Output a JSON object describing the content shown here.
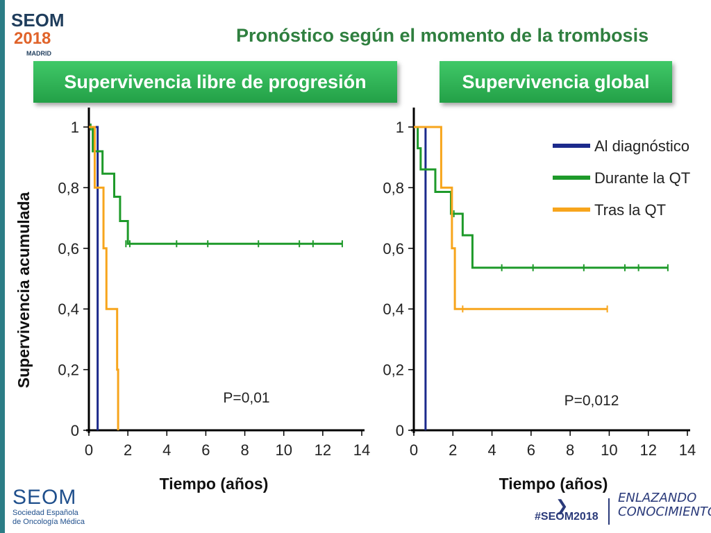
{
  "header": {
    "logo_line1": "SEOM",
    "logo_line2": "2018",
    "logo_city": "MADRID",
    "title": "Pronóstico según el momento de la trombosis"
  },
  "tabs": {
    "left": "Supervivencia libre de progresión",
    "right": "Supervivencia global"
  },
  "footer": {
    "brand": "SEOM",
    "brand_sub1": "Sociedad Española",
    "brand_sub2": "de Oncología Médica",
    "hashtag": "#SEOM2018",
    "motto_line1": "ENLAZANDO",
    "motto_line2": "CONOCIMIENTO"
  },
  "colors": {
    "al_diagnostico": "#1c2a8c",
    "durante_qt": "#1e9a2a",
    "tras_qt": "#f7a51c",
    "axis": "#000000"
  },
  "chart_data": [
    {
      "type": "line",
      "subtype": "kaplan-meier",
      "title": "Supervivencia libre de progresión",
      "xlabel": "Tiempo (años)",
      "ylabel": "Supervivencia acumulada",
      "xlim": [
        0,
        14
      ],
      "ylim": [
        0,
        1
      ],
      "xticks": [
        "0",
        "2",
        "4",
        "6",
        "8",
        "10",
        "12",
        "14"
      ],
      "yticks": [
        "0",
        "0,2",
        "0,4",
        "0,6",
        "0,8",
        "1"
      ],
      "annotation": "P=0,01",
      "series": [
        {
          "name": "Al diagnóstico",
          "color": "#1c2a8c",
          "steps": [
            [
              0,
              1.0
            ],
            [
              0.45,
              1.0
            ],
            [
              0.45,
              0.0
            ]
          ],
          "censored": []
        },
        {
          "name": "Durante la QT",
          "color": "#1e9a2a",
          "steps": [
            [
              0,
              1.0
            ],
            [
              0.2,
              1.0
            ],
            [
              0.2,
              0.92
            ],
            [
              0.7,
              0.92
            ],
            [
              0.7,
              0.846
            ],
            [
              1.3,
              0.846
            ],
            [
              1.3,
              0.77
            ],
            [
              1.6,
              0.77
            ],
            [
              1.6,
              0.69
            ],
            [
              2.0,
              0.69
            ],
            [
              2.0,
              0.615
            ],
            [
              13.0,
              0.615
            ]
          ],
          "censored": [
            [
              0.1,
              1.0
            ],
            [
              1.9,
              0.615
            ],
            [
              2.1,
              0.615
            ],
            [
              4.5,
              0.615
            ],
            [
              6.1,
              0.615
            ],
            [
              8.7,
              0.615
            ],
            [
              10.8,
              0.615
            ],
            [
              11.5,
              0.615
            ],
            [
              13.0,
              0.615
            ]
          ]
        },
        {
          "name": "Tras la QT",
          "color": "#f7a51c",
          "steps": [
            [
              0,
              1.0
            ],
            [
              0.3,
              1.0
            ],
            [
              0.3,
              0.8
            ],
            [
              0.75,
              0.8
            ],
            [
              0.75,
              0.6
            ],
            [
              0.9,
              0.6
            ],
            [
              0.9,
              0.4
            ],
            [
              1.45,
              0.4
            ],
            [
              1.45,
              0.2
            ],
            [
              1.5,
              0.2
            ],
            [
              1.5,
              0.0
            ]
          ],
          "censored": []
        }
      ]
    },
    {
      "type": "line",
      "subtype": "kaplan-meier",
      "title": "Supervivencia global",
      "xlabel": "Tiempo (años)",
      "ylabel": "",
      "xlim": [
        0,
        14
      ],
      "ylim": [
        0,
        1
      ],
      "xticks": [
        "0",
        "2",
        "4",
        "6",
        "8",
        "10",
        "12",
        "14"
      ],
      "yticks": [
        "0",
        "0,2",
        "0,4",
        "0,6",
        "0,8",
        "1"
      ],
      "annotation": "P=0,012",
      "legend": {
        "position": "top-right",
        "entries": [
          "Al diagnóstico",
          "Durante la QT",
          "Tras la QT"
        ]
      },
      "series": [
        {
          "name": "Al diagnóstico",
          "color": "#1c2a8c",
          "steps": [
            [
              0,
              1.0
            ],
            [
              0.6,
              1.0
            ],
            [
              0.6,
              0.0
            ]
          ],
          "censored": []
        },
        {
          "name": "Durante la QT",
          "color": "#1e9a2a",
          "steps": [
            [
              0,
              1.0
            ],
            [
              0.2,
              1.0
            ],
            [
              0.2,
              0.93
            ],
            [
              0.35,
              0.93
            ],
            [
              0.35,
              0.86
            ],
            [
              1.1,
              0.86
            ],
            [
              1.1,
              0.786
            ],
            [
              1.9,
              0.786
            ],
            [
              1.9,
              0.714
            ],
            [
              2.5,
              0.714
            ],
            [
              2.5,
              0.643
            ],
            [
              3.0,
              0.643
            ],
            [
              3.0,
              0.536
            ],
            [
              13.0,
              0.536
            ]
          ],
          "censored": [
            [
              2.05,
              0.714
            ],
            [
              4.5,
              0.536
            ],
            [
              6.1,
              0.536
            ],
            [
              8.7,
              0.536
            ],
            [
              10.8,
              0.536
            ],
            [
              11.5,
              0.536
            ],
            [
              13.0,
              0.536
            ]
          ]
        },
        {
          "name": "Tras la QT",
          "color": "#f7a51c",
          "steps": [
            [
              0,
              1.0
            ],
            [
              1.4,
              1.0
            ],
            [
              1.4,
              0.8
            ],
            [
              1.95,
              0.8
            ],
            [
              1.95,
              0.6
            ],
            [
              2.1,
              0.6
            ],
            [
              2.1,
              0.4
            ],
            [
              9.9,
              0.4
            ]
          ],
          "censored": [
            [
              2.5,
              0.4
            ],
            [
              9.9,
              0.4
            ]
          ]
        }
      ]
    }
  ]
}
